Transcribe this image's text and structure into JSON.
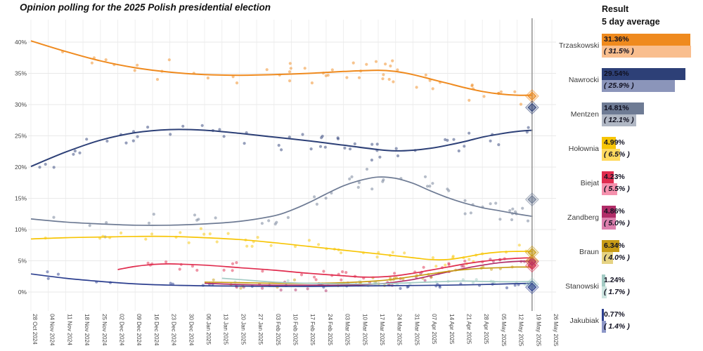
{
  "title": "Opinion polling for the 2025 Polish presidential election",
  "panel": {
    "header_line1": "Result",
    "header_line2": "5 day average"
  },
  "chart_data": {
    "type": "scatter",
    "title": "Opinion polling for the 2025 Polish presidential election",
    "xlabel": "",
    "ylabel": "",
    "ylim_pct": [
      -3,
      43.5
    ],
    "y_tick_values": [
      0,
      5,
      10,
      15,
      20,
      25,
      30,
      35,
      40
    ],
    "y_tick_labels": [
      "0%",
      "5%",
      "10%",
      "15%",
      "20%",
      "25%",
      "30%",
      "35%",
      "40%"
    ],
    "x_tick_labels": [
      "28 Oct 2024",
      "04 Nov 2024",
      "11 Nov 2024",
      "18 Nov 2024",
      "25 Nov 2024",
      "02 Dec 2024",
      "09 Dec 2024",
      "16 Dec 2024",
      "23 Dec 2024",
      "30 Dec 2024",
      "06 Jan 2025",
      "13 Jan 2025",
      "20 Jan 2025",
      "27 Jan 2025",
      "03 Feb 2025",
      "10 Feb 2025",
      "17 Feb 2025",
      "24 Feb 2025",
      "03 Mar 2025",
      "10 Mar 2025",
      "17 Mar 2025",
      "24 Mar 2025",
      "31 Mar 2025",
      "07 Apr 2025",
      "14 Apr 2025",
      "21 Apr 2025",
      "28 Apr 2025",
      "05 May 2025",
      "12 May 2025",
      "19 May 2025",
      "26 May 2025"
    ],
    "grid": true,
    "election_line_week": 28.86,
    "legend_position": "right-panel",
    "series": [
      {
        "name": "Trzaskowski",
        "color": "#ef8a1e",
        "color_light": "#f9be8e",
        "result": 31.36,
        "five_day_avg": 31.5,
        "result_label": "31.36%",
        "avg_label": "( 31.5% )",
        "trend": [
          [
            0,
            40.2
          ],
          [
            2,
            38.5
          ],
          [
            4,
            37.0
          ],
          [
            6,
            35.9
          ],
          [
            8,
            35.2
          ],
          [
            10,
            34.8
          ],
          [
            12,
            34.7
          ],
          [
            14,
            34.8
          ],
          [
            16,
            35.0
          ],
          [
            18,
            35.3
          ],
          [
            20,
            35.5
          ],
          [
            21,
            35.3
          ],
          [
            22,
            34.8
          ],
          [
            23,
            34.1
          ],
          [
            24,
            33.4
          ],
          [
            25,
            32.7
          ],
          [
            26,
            32.1
          ],
          [
            27,
            31.7
          ],
          [
            28,
            31.5
          ],
          [
            28.9,
            31.5
          ]
        ],
        "scatter": {
          "n": 55,
          "amp": 2.6,
          "seed": 11
        }
      },
      {
        "name": "Nawrocki",
        "color": "#2d4077",
        "color_light": "#8b95ba",
        "result": 29.54,
        "five_day_avg": 25.9,
        "result_label": "29.54%",
        "avg_label": "( 25.9% )",
        "trend": [
          [
            0,
            20.1
          ],
          [
            2,
            22.4
          ],
          [
            4,
            24.3
          ],
          [
            6,
            25.5
          ],
          [
            8,
            26.0
          ],
          [
            10,
            25.9
          ],
          [
            12,
            25.4
          ],
          [
            14,
            24.8
          ],
          [
            16,
            24.2
          ],
          [
            18,
            23.5
          ],
          [
            20,
            22.8
          ],
          [
            21,
            22.6
          ],
          [
            22,
            22.7
          ],
          [
            23,
            23.0
          ],
          [
            24,
            23.5
          ],
          [
            25,
            24.1
          ],
          [
            26,
            24.8
          ],
          [
            27,
            25.3
          ],
          [
            28,
            25.7
          ],
          [
            28.9,
            25.9
          ]
        ],
        "scatter": {
          "n": 55,
          "amp": 2.2,
          "seed": 22
        }
      },
      {
        "name": "Mentzen",
        "color": "#6e7b94",
        "color_light": "#b0b7c4",
        "result": 14.81,
        "five_day_avg": 12.1,
        "result_label": "14.81%",
        "avg_label": "( 12.1% )",
        "trend": [
          [
            0,
            11.7
          ],
          [
            2,
            11.2
          ],
          [
            4,
            10.9
          ],
          [
            6,
            10.7
          ],
          [
            8,
            10.7
          ],
          [
            10,
            10.9
          ],
          [
            12,
            11.3
          ],
          [
            14,
            12.2
          ],
          [
            15,
            13.1
          ],
          [
            16,
            14.3
          ],
          [
            17,
            15.7
          ],
          [
            18,
            17.0
          ],
          [
            19,
            17.9
          ],
          [
            20,
            18.4
          ],
          [
            21,
            18.2
          ],
          [
            22,
            17.4
          ],
          [
            23,
            16.2
          ],
          [
            24,
            15.1
          ],
          [
            25,
            14.2
          ],
          [
            26,
            13.5
          ],
          [
            27,
            13.0
          ],
          [
            28,
            12.5
          ],
          [
            28.9,
            12.1
          ]
        ],
        "scatter": {
          "n": 50,
          "amp": 2.2,
          "seed": 33
        }
      },
      {
        "name": "Hołownia",
        "color": "#f7c506",
        "color_light": "#ffd95e",
        "result": 4.99,
        "five_day_avg": 6.5,
        "result_label": "4.99%",
        "avg_label": "( 6.5% )",
        "trend": [
          [
            0,
            8.5
          ],
          [
            2,
            8.7
          ],
          [
            4,
            8.8
          ],
          [
            6,
            8.9
          ],
          [
            8,
            8.9
          ],
          [
            10,
            8.7
          ],
          [
            12,
            8.4
          ],
          [
            14,
            7.9
          ],
          [
            16,
            7.3
          ],
          [
            18,
            6.7
          ],
          [
            20,
            6.1
          ],
          [
            22,
            5.5
          ],
          [
            23,
            5.2
          ],
          [
            24,
            5.2
          ],
          [
            25,
            5.6
          ],
          [
            26,
            6.1
          ],
          [
            27,
            6.4
          ],
          [
            28,
            6.5
          ],
          [
            28.9,
            6.5
          ]
        ],
        "scatter": {
          "n": 48,
          "amp": 1.5,
          "seed": 44
        }
      },
      {
        "name": "Biejat",
        "color": "#e02c4e",
        "color_light": "#f591ad",
        "result": 4.23,
        "five_day_avg": 5.5,
        "result_label": "4.23%",
        "avg_label": "( 5.5% )",
        "trend": [
          [
            5,
            3.6
          ],
          [
            6,
            4.1
          ],
          [
            7,
            4.4
          ],
          [
            8,
            4.5
          ],
          [
            10,
            4.3
          ],
          [
            12,
            3.9
          ],
          [
            14,
            3.5
          ],
          [
            16,
            3.0
          ],
          [
            18,
            2.6
          ],
          [
            19,
            2.4
          ],
          [
            20,
            2.4
          ],
          [
            21,
            2.6
          ],
          [
            22,
            3.0
          ],
          [
            23,
            3.5
          ],
          [
            24,
            4.0
          ],
          [
            25,
            4.5
          ],
          [
            26,
            4.9
          ],
          [
            27,
            5.2
          ],
          [
            28,
            5.4
          ],
          [
            28.9,
            5.5
          ]
        ],
        "scatter": {
          "n": 38,
          "amp": 1.1,
          "seed": 55
        }
      },
      {
        "name": "Zandberg",
        "color": "#b12d68",
        "color_light": "#dc7fad",
        "result": 4.86,
        "five_day_avg": 5.0,
        "result_label": "4.86%",
        "avg_label": "( 5.0% )",
        "trend": [
          [
            10,
            1.4
          ],
          [
            12,
            1.2
          ],
          [
            14,
            1.1
          ],
          [
            16,
            1.1
          ],
          [
            18,
            1.1
          ],
          [
            20,
            1.3
          ],
          [
            21,
            1.6
          ],
          [
            22,
            2.0
          ],
          [
            23,
            2.6
          ],
          [
            24,
            3.2
          ],
          [
            25,
            3.8
          ],
          [
            26,
            4.3
          ],
          [
            27,
            4.7
          ],
          [
            28,
            4.9
          ],
          [
            28.9,
            5.0
          ]
        ],
        "scatter": {
          "n": 28,
          "amp": 1.0,
          "seed": 66
        }
      },
      {
        "name": "Braun",
        "color": "#c89b15",
        "color_light": "#e6d383",
        "result": 6.34,
        "five_day_avg": 4.0,
        "result_label": "6.34%",
        "avg_label": "( 4.0% )",
        "trend": [
          [
            10,
            1.6
          ],
          [
            12,
            1.5
          ],
          [
            14,
            1.4
          ],
          [
            16,
            1.4
          ],
          [
            18,
            1.5
          ],
          [
            20,
            1.8
          ],
          [
            21,
            2.1
          ],
          [
            22,
            2.5
          ],
          [
            23,
            2.9
          ],
          [
            24,
            3.3
          ],
          [
            25,
            3.6
          ],
          [
            26,
            3.8
          ],
          [
            27,
            3.9
          ],
          [
            28,
            4.0
          ],
          [
            28.9,
            4.0
          ]
        ],
        "scatter": {
          "n": 30,
          "amp": 1.1,
          "seed": 77
        }
      },
      {
        "name": "Stanowski",
        "color": "#a3cbc4",
        "color_light": "#cde4e0",
        "result": 1.24,
        "five_day_avg": 1.7,
        "result_label": "1.24%",
        "avg_label": "( 1.7% )",
        "trend": [
          [
            11,
            2.2
          ],
          [
            12,
            2.0
          ],
          [
            14,
            1.6
          ],
          [
            16,
            1.4
          ],
          [
            18,
            1.3
          ],
          [
            20,
            1.3
          ],
          [
            22,
            1.5
          ],
          [
            24,
            1.7
          ],
          [
            25,
            1.75
          ],
          [
            26,
            1.7
          ],
          [
            27,
            1.65
          ],
          [
            28,
            1.65
          ],
          [
            28.9,
            1.7
          ]
        ],
        "scatter": {
          "n": 22,
          "amp": 0.7,
          "seed": 88
        }
      },
      {
        "name": "Jakubiak",
        "color": "#2c3f8f",
        "color_light": "#8d97c8",
        "result": 0.77,
        "five_day_avg": 1.4,
        "result_label": "0.77%",
        "avg_label": "( 1.4% )",
        "trend": [
          [
            0,
            2.9
          ],
          [
            2,
            2.2
          ],
          [
            4,
            1.7
          ],
          [
            6,
            1.3
          ],
          [
            8,
            1.1
          ],
          [
            10,
            1.0
          ],
          [
            12,
            0.95
          ],
          [
            14,
            0.9
          ],
          [
            16,
            0.9
          ],
          [
            18,
            0.95
          ],
          [
            20,
            1.0
          ],
          [
            22,
            1.05
          ],
          [
            24,
            1.1
          ],
          [
            26,
            1.2
          ],
          [
            28,
            1.35
          ],
          [
            28.9,
            1.4
          ]
        ],
        "scatter": {
          "n": 30,
          "amp": 0.8,
          "seed": 99
        }
      }
    ],
    "colors": {
      "grid_vertical": "#efefef",
      "grid_horizontal": "#e9e9e9",
      "election_line": "#9a9a9a",
      "axis_text": "#444444"
    }
  }
}
